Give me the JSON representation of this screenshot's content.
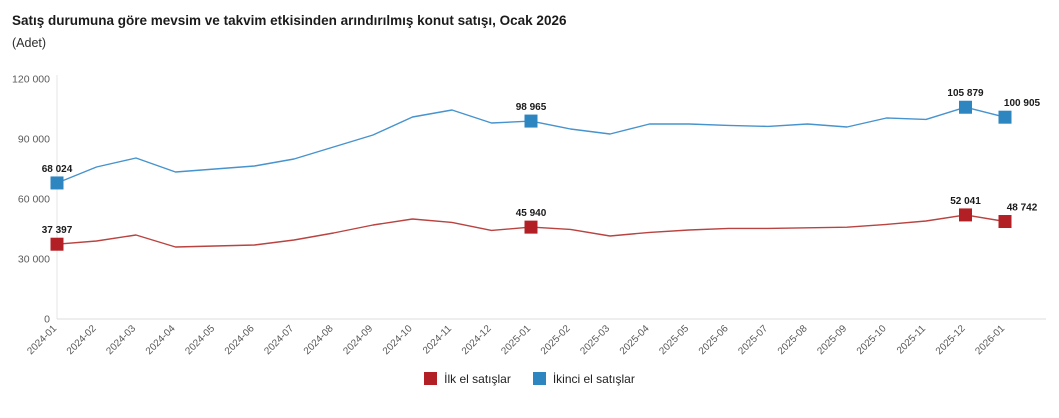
{
  "title": "Satış durumuna göre mevsim ve takvim etkisinden arındırılmış konut satışı, Ocak 2026",
  "subtitle": "(Adet)",
  "legend": [
    {
      "label": "İlk el satışlar",
      "color": "#b22025"
    },
    {
      "label": "İkinci el satışlar",
      "color": "#2e86c1"
    }
  ],
  "chart_data": {
    "type": "line",
    "title": "Satış durumuna göre mevsim ve takvim etkisinden arındırılmış konut satışı, Ocak 2026",
    "unit_label": "(Adet)",
    "x": [
      "2024-01",
      "2024-02",
      "2024-03",
      "2024-04",
      "2024-05",
      "2024-06",
      "2024-07",
      "2024-08",
      "2024-09",
      "2024-10",
      "2024-11",
      "2024-12",
      "2025-01",
      "2025-02",
      "2025-03",
      "2025-04",
      "2025-05",
      "2025-06",
      "2025-07",
      "2025-08",
      "2025-09",
      "2025-10",
      "2025-11",
      "2025-12",
      "2026-01"
    ],
    "series": [
      {
        "name": "İlk el satışlar",
        "color": "#b22025",
        "line_color": "#b94340",
        "values": [
          37397,
          39000,
          42000,
          36000,
          36500,
          37000,
          39500,
          43000,
          47000,
          50000,
          48300,
          44300,
          45940,
          44800,
          41500,
          43300,
          44500,
          45300,
          45300,
          45600,
          45900,
          47300,
          49000,
          52041,
          48742
        ],
        "labeled_points": [
          {
            "index": 0,
            "text": "37 397"
          },
          {
            "index": 12,
            "text": "45 940"
          },
          {
            "index": 23,
            "text": "52 041"
          },
          {
            "index": 24,
            "text": "48 742"
          }
        ]
      },
      {
        "name": "İkinci el satışlar",
        "color": "#2e86c1",
        "line_color": "#4693ce",
        "values": [
          68024,
          76000,
          80500,
          73500,
          75000,
          76500,
          80000,
          86000,
          92000,
          101000,
          104500,
          98000,
          98965,
          95000,
          92500,
          97500,
          97500,
          96800,
          96300,
          97500,
          96000,
          100500,
          99800,
          105879,
          100905
        ],
        "labeled_points": [
          {
            "index": 0,
            "text": "68 024"
          },
          {
            "index": 12,
            "text": "98 965"
          },
          {
            "index": 23,
            "text": "105 879"
          },
          {
            "index": 24,
            "text": "100 905"
          }
        ]
      }
    ],
    "ylim": [
      0,
      120000
    ],
    "yticks": [
      0,
      30000,
      60000,
      90000,
      120000
    ],
    "ytick_labels": [
      "0",
      "30 000",
      "60 000",
      "90 000",
      "120 000"
    ],
    "xtick_rotation": -45,
    "grid": false,
    "legend_position": "bottom"
  },
  "colors": {
    "axis_line": "#dcdcdc",
    "axis_vertical": "#e6e6e6",
    "tick_text": "#5a5a5a",
    "value_label": "#1a1a1a"
  }
}
